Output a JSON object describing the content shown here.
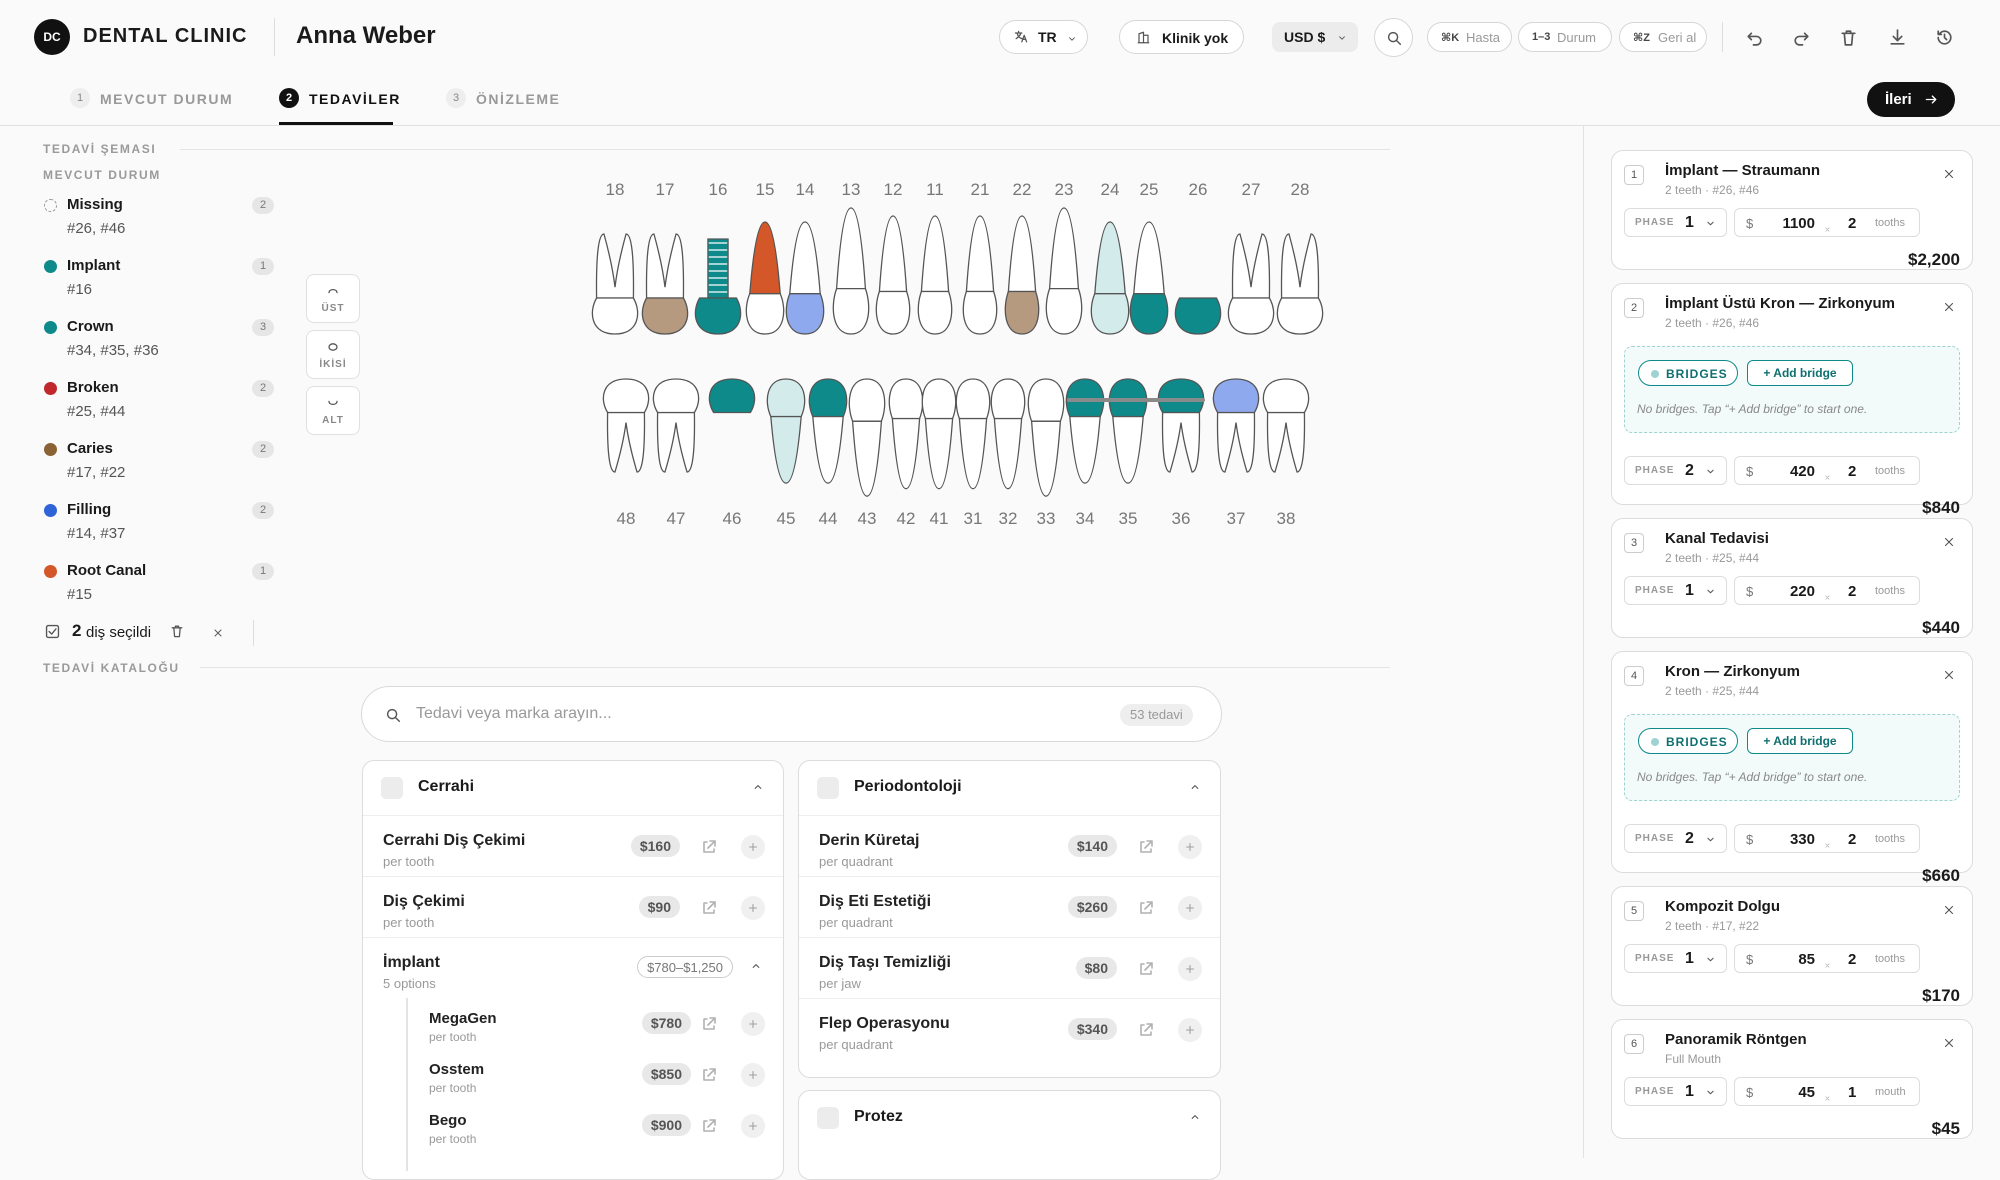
{
  "header": {
    "logo": "DC",
    "clinic": "DENTAL CLINIC",
    "patient": "Anna Weber",
    "language": "TR",
    "clinic_select": "Klinik yok",
    "currency": "USD $",
    "shortcuts": [
      {
        "key": "⌘K",
        "label": "Hasta"
      },
      {
        "key": "1–3",
        "label": "Durum"
      },
      {
        "key": "⌘Z",
        "label": "Geri al"
      }
    ]
  },
  "tabs": [
    {
      "num": "1",
      "label": "MEVCUT DURUM"
    },
    {
      "num": "2",
      "label": "TEDAVİLER"
    },
    {
      "num": "3",
      "label": "ÖNİZLEME"
    }
  ],
  "active_tab": 1,
  "next": "İleri",
  "chart": {
    "title": "TEDAVİ ŞEMASI",
    "section": "MEVCUT DURUM",
    "legend": [
      {
        "name": "Missing",
        "count": 2,
        "teeth": "#26, #46",
        "color": "#9a9a9a",
        "outline": true
      },
      {
        "name": "Implant",
        "count": 1,
        "teeth": "#16",
        "color": "#0f8a8a"
      },
      {
        "name": "Crown",
        "count": 3,
        "teeth": "#34, #35, #36",
        "color": "#0f8a8a"
      },
      {
        "name": "Broken",
        "count": 2,
        "teeth": "#25, #44",
        "color": "#c0282d"
      },
      {
        "name": "Caries",
        "count": 2,
        "teeth": "#17, #22",
        "color": "#8a6234"
      },
      {
        "name": "Filling",
        "count": 2,
        "teeth": "#14, #37",
        "color": "#2f63d8"
      },
      {
        "name": "Root Canal",
        "count": 1,
        "teeth": "#15",
        "color": "#d4572a"
      }
    ],
    "selected": {
      "count": 2,
      "label": "diş seçildi"
    },
    "arch": [
      "ÜST",
      "İKİSİ",
      "ALT"
    ],
    "state_colors": {
      "teal": "#0f8a8a",
      "light": "#d3ebeb",
      "caries": "#b59a80",
      "root": "#d4572a",
      "filling": "#8fa9ee",
      "normal": "#ffffff"
    },
    "upper": [
      {
        "n": 18,
        "state": "normal"
      },
      {
        "n": 17,
        "state": "caries"
      },
      {
        "n": 16,
        "state": "implant"
      },
      {
        "n": 15,
        "state": "root"
      },
      {
        "n": 14,
        "state": "filling"
      },
      {
        "n": 13,
        "state": "normal"
      },
      {
        "n": 12,
        "state": "normal"
      },
      {
        "n": 11,
        "state": "normal"
      },
      {
        "n": 21,
        "state": "normal"
      },
      {
        "n": 22,
        "state": "caries"
      },
      {
        "n": 23,
        "state": "normal"
      },
      {
        "n": 24,
        "state": "light"
      },
      {
        "n": 25,
        "state": "crown"
      },
      {
        "n": 26,
        "state": "crown-only"
      },
      {
        "n": 27,
        "state": "normal"
      },
      {
        "n": 28,
        "state": "normal"
      }
    ],
    "lower": [
      {
        "n": 48,
        "state": "normal"
      },
      {
        "n": 47,
        "state": "normal"
      },
      {
        "n": 46,
        "state": "crown-only"
      },
      {
        "n": 45,
        "state": "light"
      },
      {
        "n": 44,
        "state": "crown"
      },
      {
        "n": 43,
        "state": "normal"
      },
      {
        "n": 42,
        "state": "normal"
      },
      {
        "n": 41,
        "state": "normal"
      },
      {
        "n": 31,
        "state": "normal"
      },
      {
        "n": 32,
        "state": "normal"
      },
      {
        "n": 33,
        "state": "normal"
      },
      {
        "n": 34,
        "state": "crown"
      },
      {
        "n": 35,
        "state": "crown"
      },
      {
        "n": 36,
        "state": "crown"
      },
      {
        "n": 37,
        "state": "filling"
      },
      {
        "n": 38,
        "state": "normal"
      }
    ]
  },
  "catalog": {
    "title": "TEDAVİ KATALOĞU",
    "search": "Tedavi veya marka arayın...",
    "count": "53 tedavi",
    "groups": [
      {
        "name": "Cerrahi",
        "items": [
          {
            "name": "Cerrahi Diş Çekimi",
            "unit": "per tooth",
            "price": "$160"
          },
          {
            "name": "Diş Çekimi",
            "unit": "per tooth",
            "price": "$90"
          },
          {
            "name": "İmplant",
            "unit": "5 options",
            "price": "$780–$1,250",
            "options": [
              {
                "name": "MegaGen",
                "unit": "per tooth",
                "price": "$780"
              },
              {
                "name": "Osstem",
                "unit": "per tooth",
                "price": "$850"
              },
              {
                "name": "Bego",
                "unit": "per tooth",
                "price": "$900"
              }
            ]
          }
        ]
      },
      {
        "name": "Periodontoloji",
        "items": [
          {
            "name": "Derin Küretaj",
            "unit": "per quadrant",
            "price": "$140"
          },
          {
            "name": "Diş Eti Estetiği",
            "unit": "per quadrant",
            "price": "$260"
          },
          {
            "name": "Diş Taşı Temizliği",
            "unit": "per jaw",
            "price": "$80"
          },
          {
            "name": "Flep Operasyonu",
            "unit": "per quadrant",
            "price": "$340"
          }
        ]
      },
      {
        "name": "Protez",
        "items": []
      }
    ]
  },
  "plan": {
    "phase_label": "PHASE",
    "currency": "$",
    "bridges_label": "BRIDGES",
    "add_bridge": "+ Add bridge",
    "no_bridges": "No bridges. Tap “+ Add bridge” to start one.",
    "items": [
      {
        "num": 1,
        "title": "İmplant — Straumann",
        "sub": "2 teeth · #26, #46",
        "phase": 1,
        "price": 1100,
        "qty": 2,
        "unit": "tooths",
        "total": "$2,200"
      },
      {
        "num": 2,
        "title": "İmplant Üstü Kron — Zirkonyum",
        "sub": "2 teeth · #26, #46",
        "bridges": true,
        "phase": 2,
        "price": 420,
        "qty": 2,
        "unit": "tooths",
        "total": "$840"
      },
      {
        "num": 3,
        "title": "Kanal Tedavisi",
        "sub": "2 teeth · #25, #44",
        "phase": 1,
        "price": 220,
        "qty": 2,
        "unit": "tooths",
        "total": "$440"
      },
      {
        "num": 4,
        "title": "Kron — Zirkonyum",
        "sub": "2 teeth · #25, #44",
        "bridges": true,
        "phase": 2,
        "price": 330,
        "qty": 2,
        "unit": "tooths",
        "total": "$660"
      },
      {
        "num": 5,
        "title": "Kompozit Dolgu",
        "sub": "2 teeth · #17, #22",
        "phase": 1,
        "price": 85,
        "qty": 2,
        "unit": "tooths",
        "total": "$170"
      },
      {
        "num": 6,
        "title": "Panoramik Röntgen",
        "sub": "Full Mouth",
        "phase": 1,
        "price": 45,
        "qty": 1,
        "unit": "mouth",
        "total": "$45"
      }
    ]
  }
}
